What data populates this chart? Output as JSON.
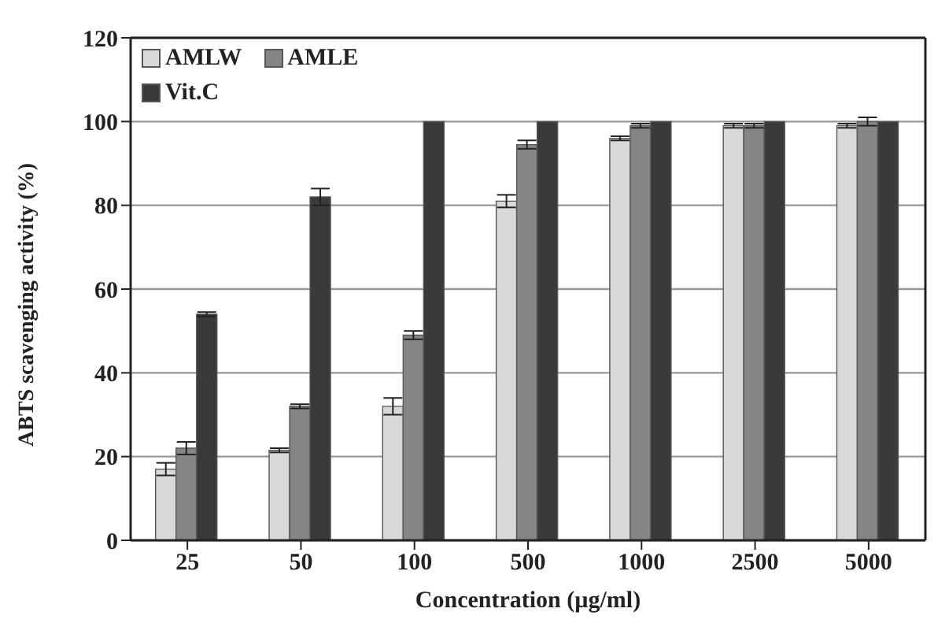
{
  "chart_data": {
    "type": "bar",
    "xlabel": "Concentration (µg/ml)",
    "ylabel": "ABTS scavenging activity (%)",
    "categories": [
      "25",
      "50",
      "100",
      "500",
      "1000",
      "2500",
      "5000"
    ],
    "series": [
      {
        "name": "AMLW",
        "color": "#d9d9d9",
        "values": [
          17,
          21.5,
          32,
          81,
          96,
          99,
          99
        ],
        "errors": [
          1.5,
          0.5,
          2,
          1.5,
          0.5,
          0.5,
          0.5
        ]
      },
      {
        "name": "AMLE",
        "color": "#858585",
        "values": [
          22,
          32,
          49,
          94.5,
          99,
          99,
          100
        ],
        "errors": [
          1.5,
          0.5,
          1,
          1,
          0.5,
          0.5,
          1
        ]
      },
      {
        "name": "Vit.C",
        "color": "#3a3a3a",
        "values": [
          54,
          82,
          100,
          100,
          100,
          100,
          100
        ],
        "errors": [
          0.5,
          2,
          null,
          null,
          null,
          null,
          null
        ]
      }
    ],
    "ylim": [
      0,
      120
    ],
    "yticks": [
      0,
      20,
      40,
      60,
      80,
      100,
      120
    ],
    "grid": "y",
    "legend": "top left"
  }
}
